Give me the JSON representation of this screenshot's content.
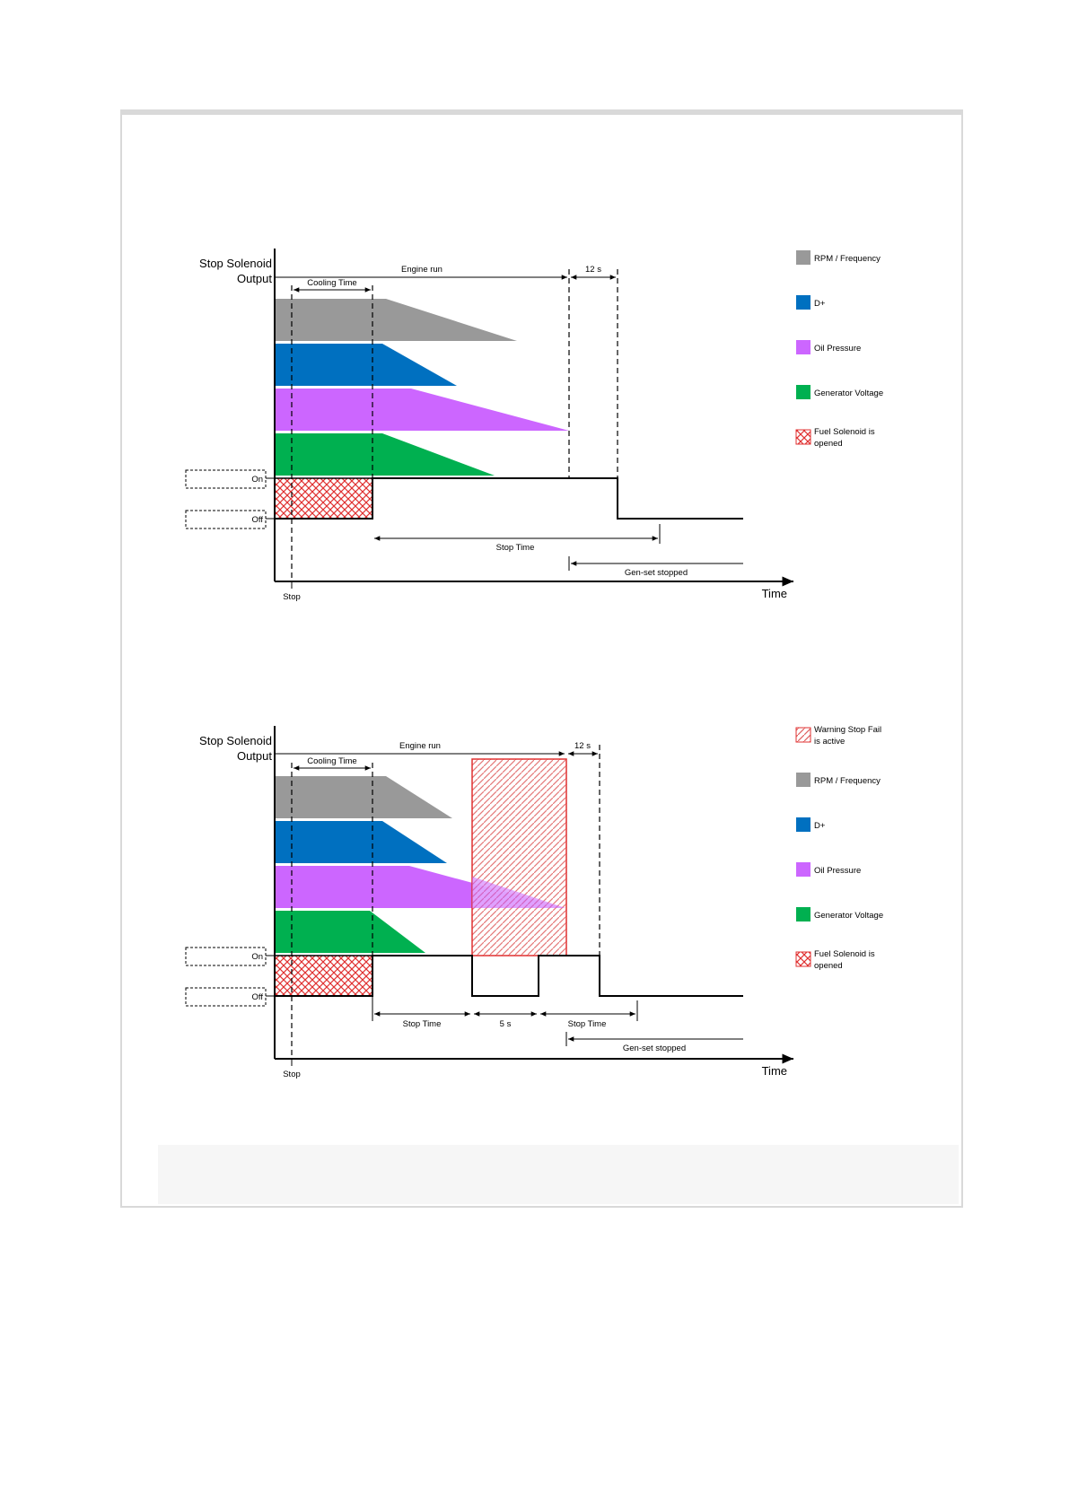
{
  "diagram1": {
    "y_axis_label_line1": "Stop Solenoid",
    "y_axis_label_line2": "Output",
    "x_axis_label": "Time",
    "stop_label": "Stop",
    "on_label": "On",
    "off_label": "Off",
    "engine_run": "Engine run",
    "cooling_time": "Cooling Time",
    "delay_12s": "12 s",
    "stop_time": "Stop Time",
    "genset_stopped": "Gen-set stopped",
    "legend": [
      {
        "label": "RPM / Frequency",
        "color": "#999999"
      },
      {
        "label": "D+",
        "color": "#0070c0"
      },
      {
        "label": "Oil Pressure",
        "color": "#cc66ff"
      },
      {
        "label": "Generator Voltage",
        "color": "#00b050"
      },
      {
        "label_line1": "Fuel Solenoid is",
        "label_line2": "opened",
        "pattern": "red-crosshatch"
      }
    ]
  },
  "diagram2": {
    "y_axis_label_line1": "Stop Solenoid",
    "y_axis_label_line2": "Output",
    "x_axis_label": "Time",
    "stop_label": "Stop",
    "on_label": "On",
    "off_label": "Off",
    "engine_run": "Engine run",
    "cooling_time": "Cooling Time",
    "delay_12s": "12 s",
    "stop_time_1": "Stop Time",
    "delay_5s": "5 s",
    "stop_time_2": "Stop Time",
    "genset_stopped": "Gen-set stopped",
    "legend": [
      {
        "label_line1": "Warning Stop Fail",
        "label_line2": "is active",
        "pattern": "red-diagonal"
      },
      {
        "label": "RPM / Frequency",
        "color": "#999999"
      },
      {
        "label": "D+",
        "color": "#0070c0"
      },
      {
        "label": "Oil Pressure",
        "color": "#cc66ff"
      },
      {
        "label": "Generator Voltage",
        "color": "#00b050"
      },
      {
        "label_line1": "Fuel Solenoid is",
        "label_line2": "opened",
        "pattern": "red-crosshatch"
      }
    ]
  }
}
